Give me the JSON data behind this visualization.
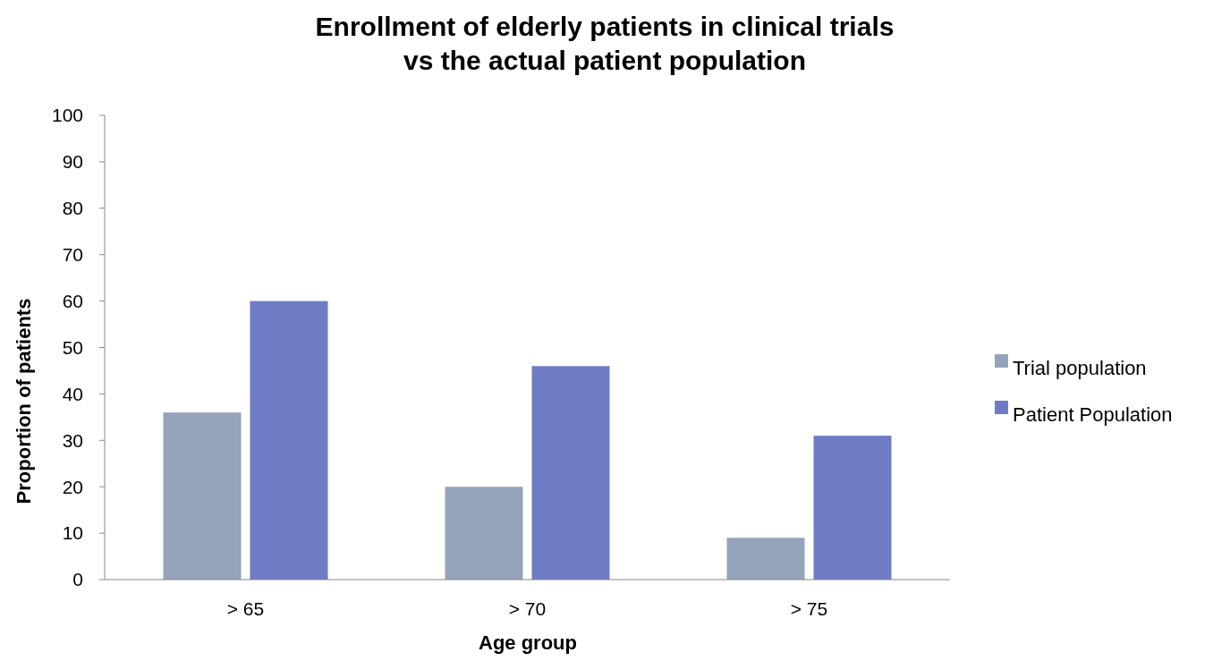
{
  "chart_data": {
    "type": "bar",
    "title": "Enrollment of elderly patients in clinical trials\nvs the actual patient population",
    "xlabel": "Age group",
    "ylabel": "Proportion of patients",
    "categories": [
      "> 65",
      "> 70",
      "> 75"
    ],
    "series": [
      {
        "name": "Trial population",
        "color": "#94a3b9",
        "values": [
          36,
          20,
          9
        ]
      },
      {
        "name": "Patient Population",
        "color": "#6f7bc4",
        "values": [
          60,
          46,
          31
        ]
      }
    ],
    "ylim": [
      0,
      100
    ],
    "yticks": [
      0,
      10,
      20,
      30,
      40,
      50,
      60,
      70,
      80,
      90,
      100
    ],
    "grid": false,
    "legend": "right"
  }
}
